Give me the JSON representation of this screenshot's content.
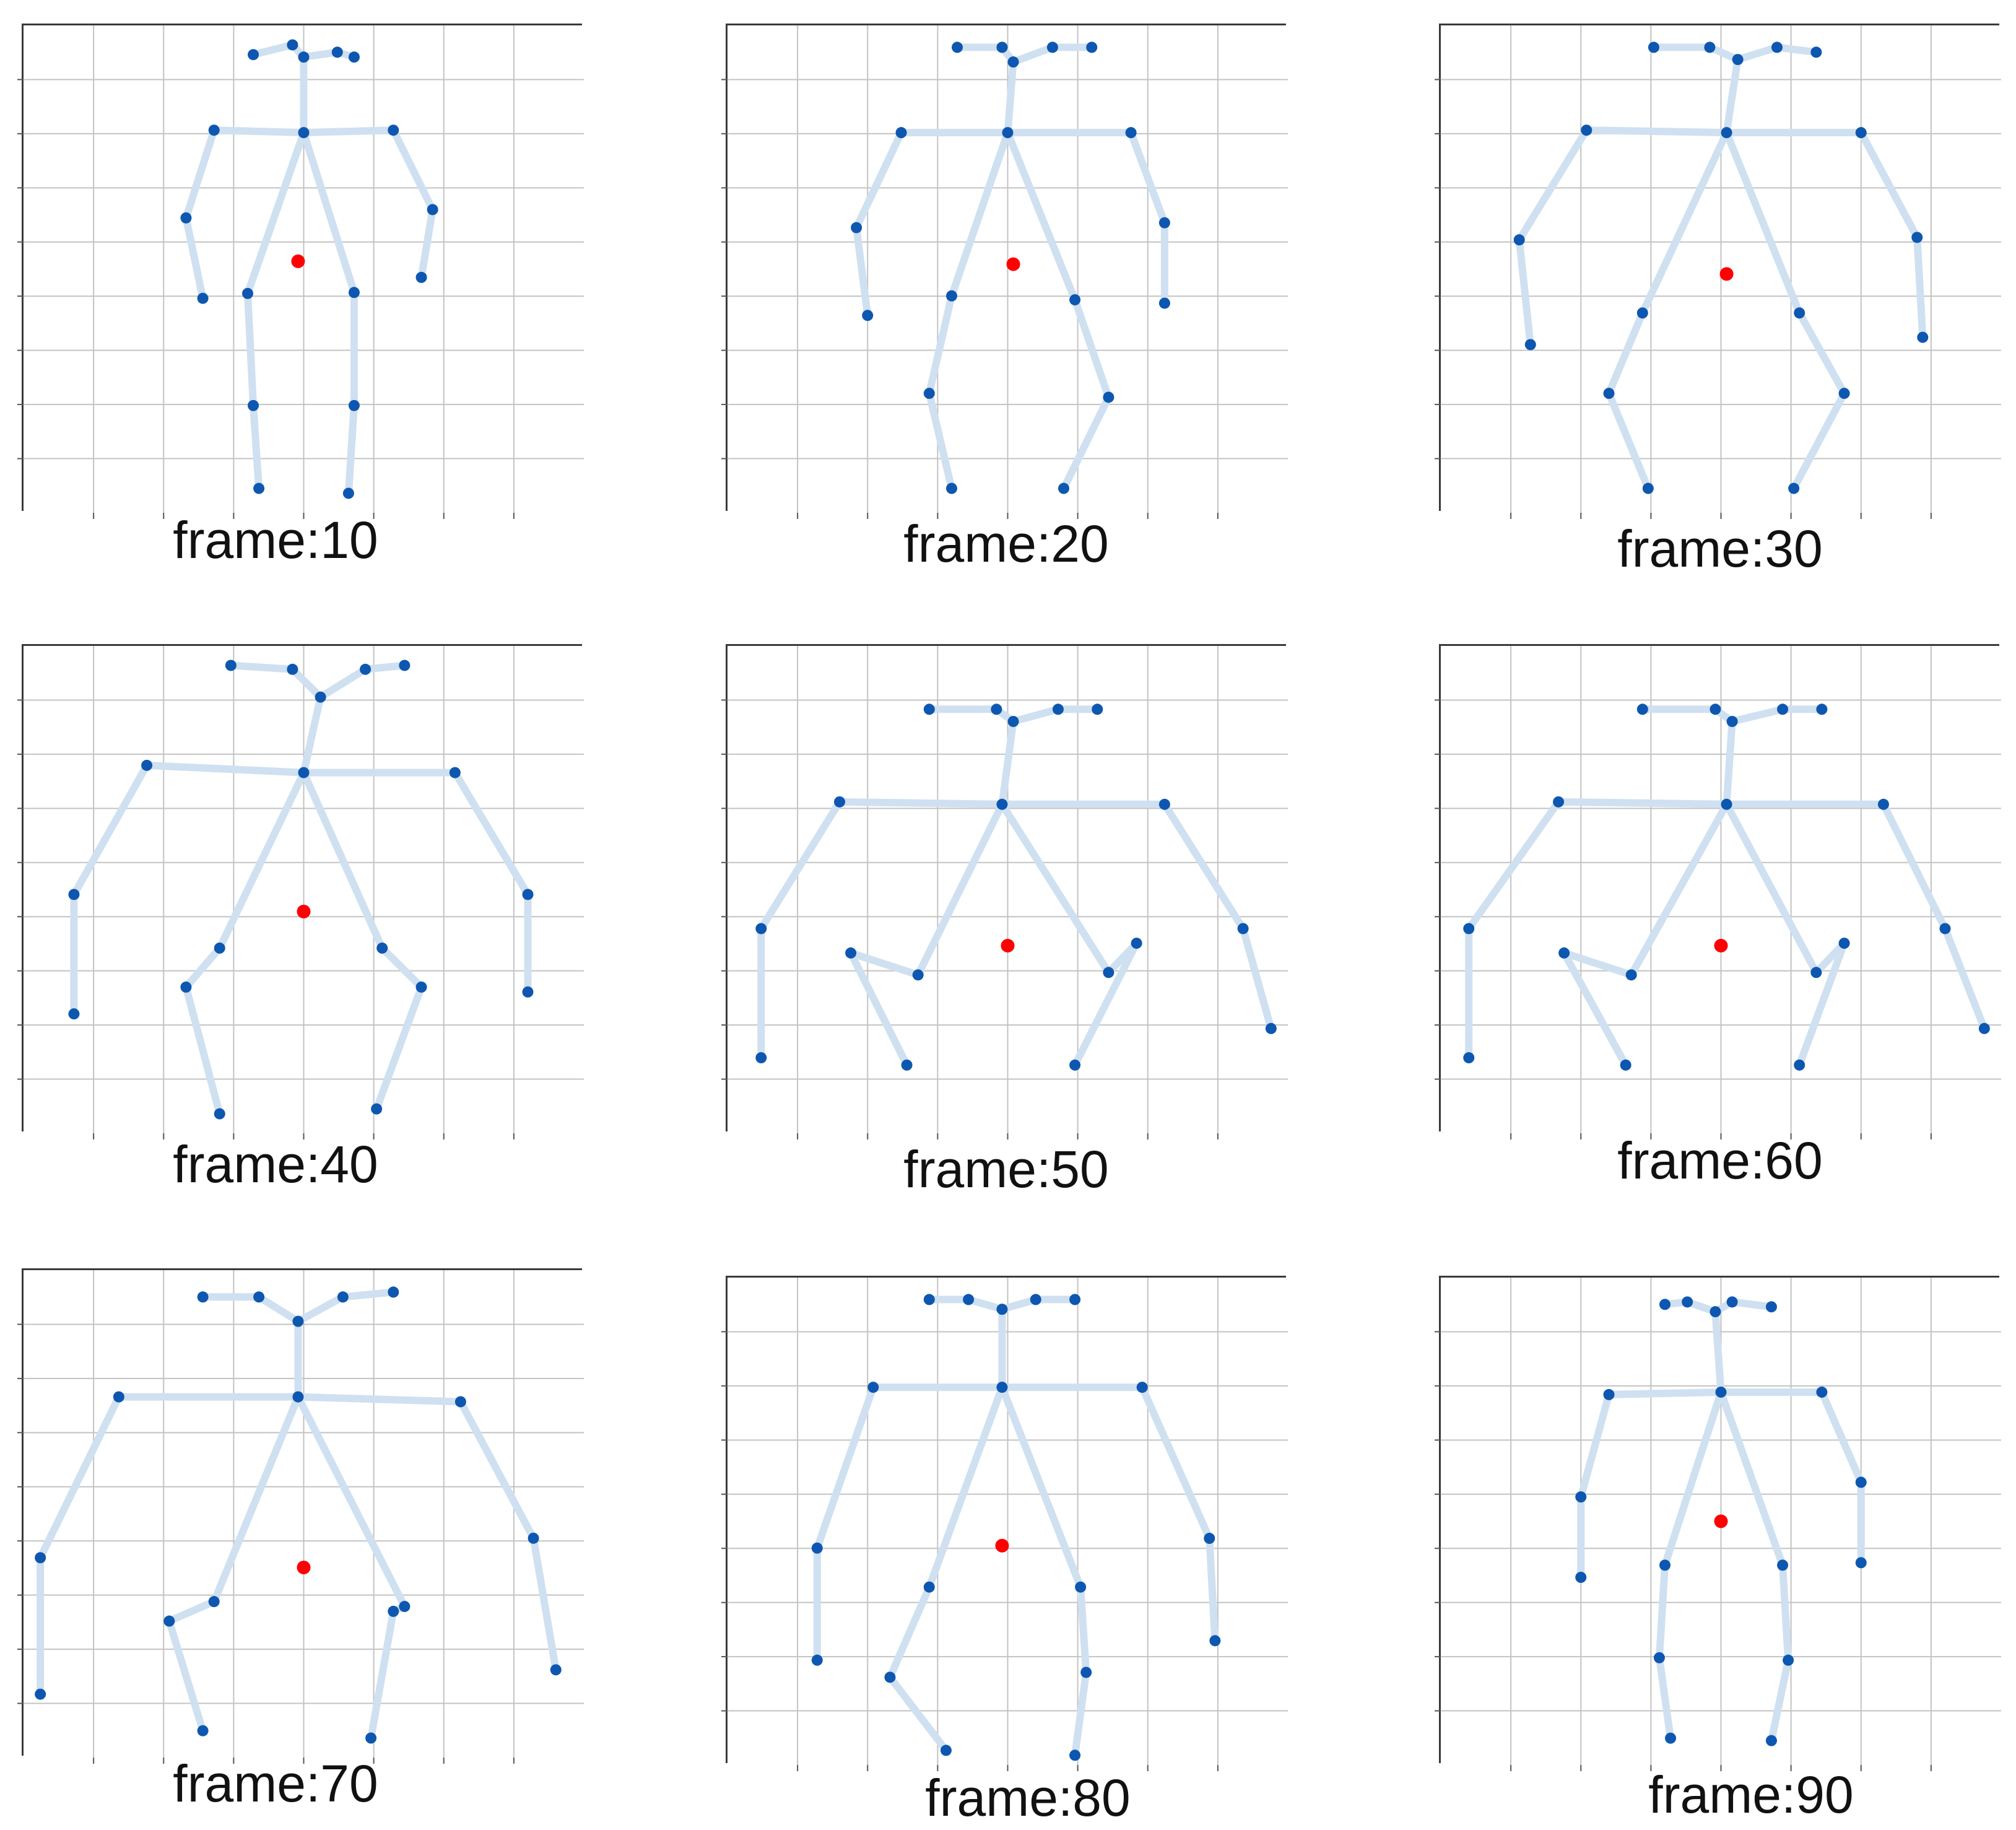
{
  "colors": {
    "grid": "#c3c3c3",
    "bone": "#cfe0f1",
    "joint": "#0d57b0",
    "center": "#ff0000",
    "frame_border": "#3a3a3a"
  },
  "panels": [
    {
      "caption": "frame:10",
      "joints": [
        [
          0.41,
          0.06
        ],
        [
          0.48,
          0.04
        ],
        [
          0.5,
          0.065
        ],
        [
          0.56,
          0.055
        ],
        [
          0.59,
          0.065
        ],
        [
          0.5,
          0.22
        ],
        [
          0.34,
          0.215
        ],
        [
          0.66,
          0.215
        ],
        [
          0.29,
          0.395
        ],
        [
          0.73,
          0.378
        ],
        [
          0.32,
          0.56
        ],
        [
          0.71,
          0.517
        ],
        [
          0.4,
          0.55
        ],
        [
          0.59,
          0.548
        ],
        [
          0.41,
          0.78
        ],
        [
          0.59,
          0.78
        ],
        [
          0.42,
          0.95
        ],
        [
          0.58,
          0.96
        ]
      ],
      "center": [
        0.49,
        0.484
      ]
    },
    {
      "caption": "frame:20",
      "joints": [
        [
          0.41,
          0.045
        ],
        [
          0.49,
          0.045
        ],
        [
          0.51,
          0.075
        ],
        [
          0.58,
          0.045
        ],
        [
          0.65,
          0.045
        ],
        [
          0.5,
          0.22
        ],
        [
          0.31,
          0.22
        ],
        [
          0.72,
          0.22
        ],
        [
          0.23,
          0.415
        ],
        [
          0.78,
          0.405
        ],
        [
          0.25,
          0.595
        ],
        [
          0.78,
          0.57
        ],
        [
          0.4,
          0.555
        ],
        [
          0.62,
          0.563
        ],
        [
          0.36,
          0.755
        ],
        [
          0.68,
          0.763
        ],
        [
          0.4,
          0.95
        ],
        [
          0.6,
          0.95
        ]
      ],
      "center": [
        0.51,
        0.49
      ]
    },
    {
      "caption": "frame:30",
      "joints": [
        [
          0.38,
          0.045
        ],
        [
          0.48,
          0.045
        ],
        [
          0.53,
          0.07
        ],
        [
          0.6,
          0.045
        ],
        [
          0.67,
          0.055
        ],
        [
          0.51,
          0.22
        ],
        [
          0.26,
          0.215
        ],
        [
          0.75,
          0.22
        ],
        [
          0.14,
          0.44
        ],
        [
          0.85,
          0.435
        ],
        [
          0.16,
          0.655
        ],
        [
          0.86,
          0.64
        ],
        [
          0.36,
          0.59
        ],
        [
          0.64,
          0.59
        ],
        [
          0.3,
          0.755
        ],
        [
          0.72,
          0.755
        ],
        [
          0.37,
          0.95
        ],
        [
          0.63,
          0.95
        ]
      ],
      "center": [
        0.51,
        0.51
      ]
    },
    {
      "caption": "frame:40",
      "joints": [
        [
          0.37,
          0.04
        ],
        [
          0.48,
          0.048
        ],
        [
          0.53,
          0.105
        ],
        [
          0.61,
          0.048
        ],
        [
          0.68,
          0.04
        ],
        [
          0.5,
          0.26
        ],
        [
          0.22,
          0.245
        ],
        [
          0.77,
          0.26
        ],
        [
          0.09,
          0.51
        ],
        [
          0.9,
          0.51
        ],
        [
          0.09,
          0.755
        ],
        [
          0.9,
          0.71
        ],
        [
          0.35,
          0.62
        ],
        [
          0.64,
          0.62
        ],
        [
          0.29,
          0.7
        ],
        [
          0.71,
          0.7
        ],
        [
          0.35,
          0.96
        ],
        [
          0.63,
          0.95
        ]
      ],
      "center": [
        0.5,
        0.545
      ]
    },
    {
      "caption": "frame:50",
      "joints": [
        [
          0.36,
          0.13
        ],
        [
          0.48,
          0.13
        ],
        [
          0.51,
          0.155
        ],
        [
          0.59,
          0.13
        ],
        [
          0.66,
          0.13
        ],
        [
          0.49,
          0.325
        ],
        [
          0.2,
          0.32
        ],
        [
          0.78,
          0.325
        ],
        [
          0.06,
          0.58
        ],
        [
          0.92,
          0.58
        ],
        [
          0.06,
          0.845
        ],
        [
          0.97,
          0.785
        ],
        [
          0.34,
          0.675
        ],
        [
          0.68,
          0.67
        ],
        [
          0.22,
          0.63
        ],
        [
          0.73,
          0.61
        ],
        [
          0.32,
          0.86
        ],
        [
          0.62,
          0.86
        ]
      ],
      "center": [
        0.5,
        0.615
      ]
    },
    {
      "caption": "frame:60",
      "joints": [
        [
          0.36,
          0.13
        ],
        [
          0.49,
          0.13
        ],
        [
          0.52,
          0.155
        ],
        [
          0.61,
          0.13
        ],
        [
          0.68,
          0.13
        ],
        [
          0.51,
          0.325
        ],
        [
          0.21,
          0.32
        ],
        [
          0.79,
          0.325
        ],
        [
          0.05,
          0.58
        ],
        [
          0.9,
          0.58
        ],
        [
          0.05,
          0.845
        ],
        [
          0.97,
          0.785
        ],
        [
          0.34,
          0.675
        ],
        [
          0.67,
          0.67
        ],
        [
          0.22,
          0.63
        ],
        [
          0.72,
          0.61
        ],
        [
          0.33,
          0.86
        ],
        [
          0.64,
          0.86
        ]
      ],
      "center": [
        0.5,
        0.615
      ]
    },
    {
      "caption": "frame:70",
      "joints": [
        [
          0.32,
          0.055
        ],
        [
          0.42,
          0.055
        ],
        [
          0.49,
          0.105
        ],
        [
          0.57,
          0.055
        ],
        [
          0.66,
          0.045
        ],
        [
          0.49,
          0.26
        ],
        [
          0.17,
          0.26
        ],
        [
          0.78,
          0.27
        ],
        [
          0.03,
          0.59
        ],
        [
          0.91,
          0.55
        ],
        [
          0.03,
          0.87
        ],
        [
          0.95,
          0.82
        ],
        [
          0.34,
          0.68
        ],
        [
          0.68,
          0.69
        ],
        [
          0.26,
          0.72
        ],
        [
          0.66,
          0.7
        ],
        [
          0.32,
          0.945
        ],
        [
          0.62,
          0.96
        ]
      ],
      "center": [
        0.5,
        0.61
      ]
    },
    {
      "caption": "frame:80",
      "joints": [
        [
          0.36,
          0.045
        ],
        [
          0.43,
          0.045
        ],
        [
          0.49,
          0.065
        ],
        [
          0.55,
          0.045
        ],
        [
          0.62,
          0.045
        ],
        [
          0.49,
          0.225
        ],
        [
          0.26,
          0.225
        ],
        [
          0.74,
          0.225
        ],
        [
          0.16,
          0.555
        ],
        [
          0.86,
          0.535
        ],
        [
          0.16,
          0.785
        ],
        [
          0.87,
          0.745
        ],
        [
          0.36,
          0.635
        ],
        [
          0.63,
          0.635
        ],
        [
          0.29,
          0.82
        ],
        [
          0.64,
          0.81
        ],
        [
          0.39,
          0.97
        ],
        [
          0.62,
          0.98
        ]
      ],
      "center": [
        0.49,
        0.55
      ]
    },
    {
      "caption": "frame:90",
      "joints": [
        [
          0.4,
          0.055
        ],
        [
          0.44,
          0.05
        ],
        [
          0.49,
          0.07
        ],
        [
          0.52,
          0.05
        ],
        [
          0.59,
          0.06
        ],
        [
          0.5,
          0.235
        ],
        [
          0.3,
          0.24
        ],
        [
          0.68,
          0.235
        ],
        [
          0.25,
          0.45
        ],
        [
          0.75,
          0.42
        ],
        [
          0.25,
          0.615
        ],
        [
          0.75,
          0.585
        ],
        [
          0.4,
          0.59
        ],
        [
          0.61,
          0.59
        ],
        [
          0.39,
          0.78
        ],
        [
          0.62,
          0.785
        ],
        [
          0.41,
          0.945
        ],
        [
          0.59,
          0.95
        ]
      ],
      "center": [
        0.5,
        0.5
      ]
    }
  ]
}
